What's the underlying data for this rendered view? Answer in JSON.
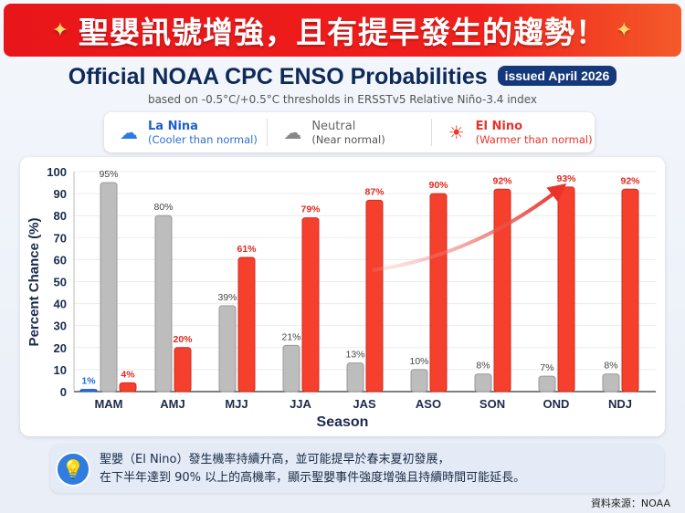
{
  "banner": {
    "text": "聖嬰訊號增強，且有提早發生的趨勢！",
    "spark": "✦"
  },
  "title": "Official NOAA CPC ENSO Probabilities",
  "badge": "issued April 2026",
  "subtitle": "based on -0.5°C/+0.5°C thresholds in ERSSTv5 Relative Niño-3.4 index",
  "legend": [
    {
      "name": "La Nina",
      "desc": "(Cooler than normal)",
      "color": "#1f6fe0",
      "icon": "rain-cloud-icon"
    },
    {
      "name": "Neutral",
      "desc": "(Near normal)",
      "color": "#666666",
      "icon": "cloud-icon"
    },
    {
      "name": "El Nino",
      "desc": "(Warmer than normal)",
      "color": "#e8322a",
      "icon": "sun-icon"
    }
  ],
  "chart_data": {
    "type": "bar",
    "xlabel": "Season",
    "ylabel": "Percent Chance (%)",
    "ylim": [
      0,
      100
    ],
    "yticks": [
      0,
      10,
      20,
      30,
      40,
      50,
      60,
      70,
      80,
      90,
      100
    ],
    "grid": true,
    "categories": [
      "MAM",
      "AMJ",
      "MJJ",
      "JJA",
      "JAS",
      "ASO",
      "SON",
      "OND",
      "NDJ"
    ],
    "series": [
      {
        "name": "La Nina",
        "color": "#2a6fe0",
        "values": [
          1,
          null,
          null,
          null,
          null,
          null,
          null,
          null,
          null
        ]
      },
      {
        "name": "Neutral",
        "color": "#bdbdbd",
        "values": [
          95,
          80,
          39,
          21,
          13,
          10,
          8,
          7,
          8
        ]
      },
      {
        "name": "El Nino",
        "color": "#f4402c",
        "values": [
          4,
          20,
          61,
          79,
          87,
          90,
          92,
          93,
          92
        ]
      }
    ],
    "annotation": "rising trend arrow toward OND"
  },
  "note": {
    "line1": "聖嬰（El Nino）發生機率持續升高，並可能提早於春末夏初發展，",
    "line2": "在下半年達到 90% 以上的高機率，顯示聖嬰事件強度增強且持續時間可能延長。"
  },
  "source": "資料來源：NOAA"
}
